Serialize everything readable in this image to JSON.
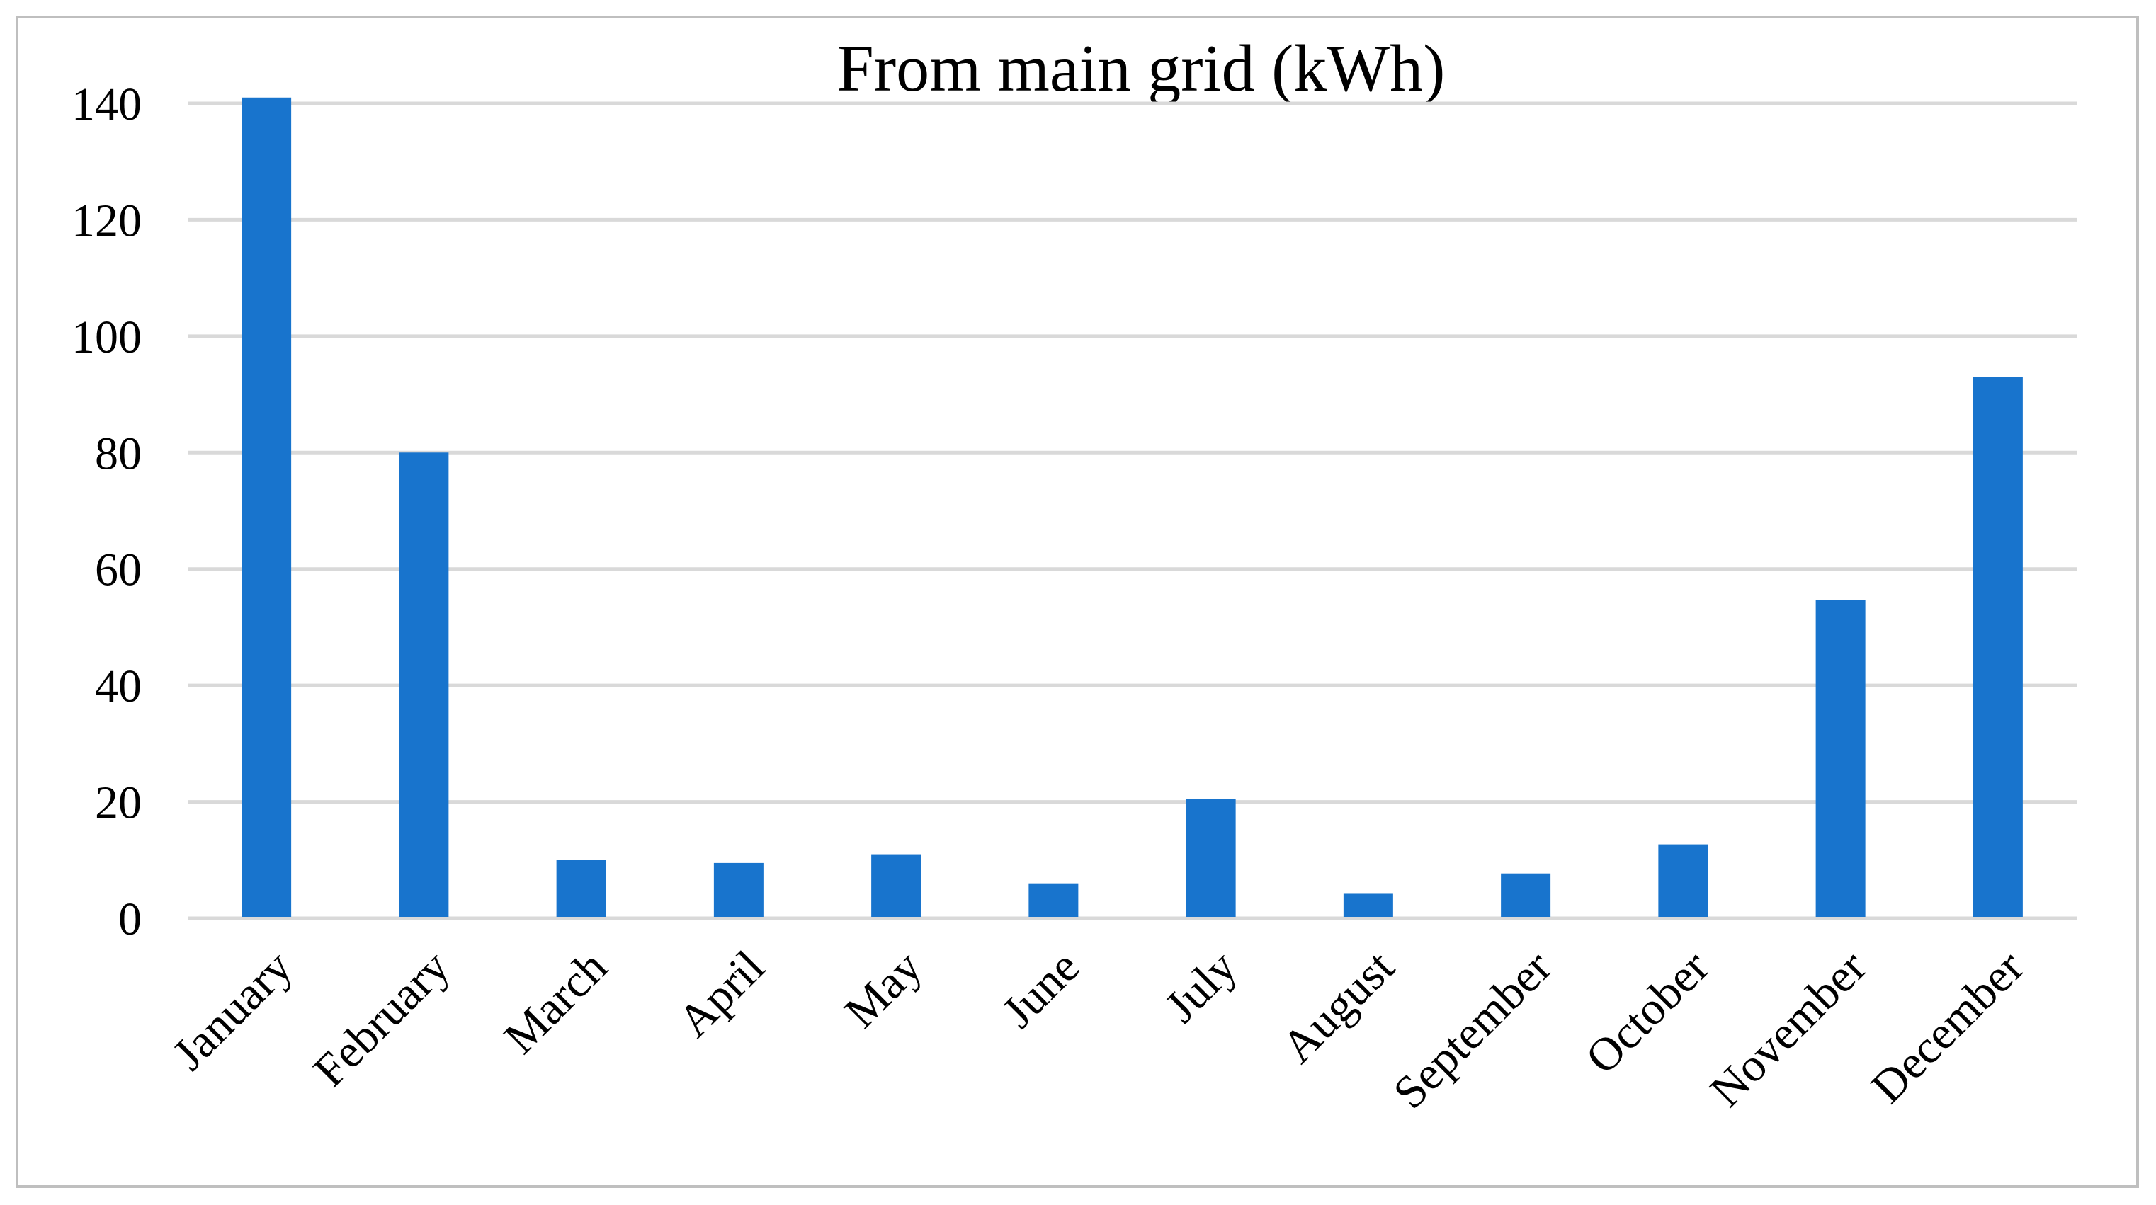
{
  "chart_data": {
    "type": "bar",
    "title": "From main grid (kWh)",
    "xlabel": "",
    "ylabel": "",
    "categories": [
      "January",
      "February",
      "March",
      "April",
      "May",
      "June",
      "July",
      "August",
      "September",
      "October",
      "November",
      "December"
    ],
    "values": [
      141,
      80,
      10,
      9.5,
      11,
      6,
      20.5,
      4.2,
      7.7,
      12.7,
      54.7,
      93
    ],
    "ylim": [
      0,
      140
    ],
    "yticks": [
      0,
      20,
      40,
      60,
      80,
      100,
      120,
      140
    ],
    "grid": true,
    "legend": "none",
    "bar_color": "#1874CD",
    "grid_color": "#D9D9D9"
  }
}
